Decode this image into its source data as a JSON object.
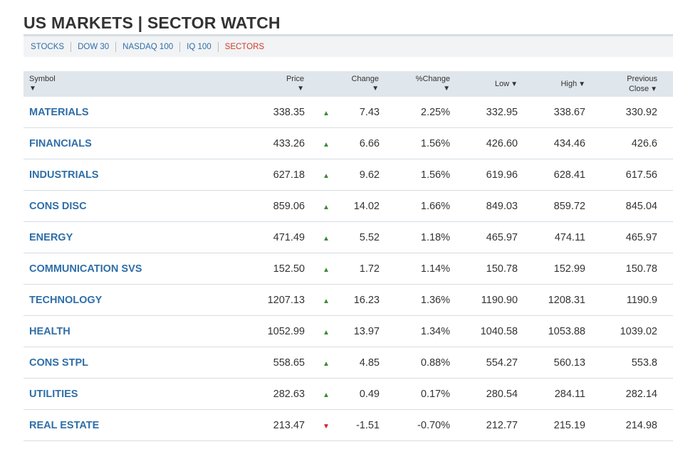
{
  "page": {
    "title": "US MARKETS | SECTOR WATCH"
  },
  "tabs": [
    {
      "label": "STOCKS",
      "active": false
    },
    {
      "label": "DOW 30",
      "active": false
    },
    {
      "label": "NASDAQ 100",
      "active": false
    },
    {
      "label": "IQ 100",
      "active": false
    },
    {
      "label": "SECTORS",
      "active": true
    }
  ],
  "table": {
    "headers": {
      "symbol": "Symbol",
      "price": "Price",
      "change": "Change",
      "pct_change": "%Change",
      "low": "Low",
      "high": "High",
      "prev_close_line1": "Previous",
      "prev_close_line2": "Close"
    },
    "sort_arrow": "▼",
    "up_arrow": "▲",
    "down_arrow": "▼",
    "rows": [
      {
        "symbol": "MATERIALS",
        "price": "338.35",
        "direction": "up",
        "change": "7.43",
        "pct_change": "2.25%",
        "low": "332.95",
        "high": "338.67",
        "prev_close": "330.92"
      },
      {
        "symbol": "FINANCIALS",
        "price": "433.26",
        "direction": "up",
        "change": "6.66",
        "pct_change": "1.56%",
        "low": "426.60",
        "high": "434.46",
        "prev_close": "426.6"
      },
      {
        "symbol": "INDUSTRIALS",
        "price": "627.18",
        "direction": "up",
        "change": "9.62",
        "pct_change": "1.56%",
        "low": "619.96",
        "high": "628.41",
        "prev_close": "617.56"
      },
      {
        "symbol": "CONS DISC",
        "price": "859.06",
        "direction": "up",
        "change": "14.02",
        "pct_change": "1.66%",
        "low": "849.03",
        "high": "859.72",
        "prev_close": "845.04"
      },
      {
        "symbol": "ENERGY",
        "price": "471.49",
        "direction": "up",
        "change": "5.52",
        "pct_change": "1.18%",
        "low": "465.97",
        "high": "474.11",
        "prev_close": "465.97"
      },
      {
        "symbol": "COMMUNICATION SVS",
        "price": "152.50",
        "direction": "up",
        "change": "1.72",
        "pct_change": "1.14%",
        "low": "150.78",
        "high": "152.99",
        "prev_close": "150.78"
      },
      {
        "symbol": "TECHNOLOGY",
        "price": "1207.13",
        "direction": "up",
        "change": "16.23",
        "pct_change": "1.36%",
        "low": "1190.90",
        "high": "1208.31",
        "prev_close": "1190.9"
      },
      {
        "symbol": "HEALTH",
        "price": "1052.99",
        "direction": "up",
        "change": "13.97",
        "pct_change": "1.34%",
        "low": "1040.58",
        "high": "1053.88",
        "prev_close": "1039.02"
      },
      {
        "symbol": "CONS STPL",
        "price": "558.65",
        "direction": "up",
        "change": "4.85",
        "pct_change": "0.88%",
        "low": "554.27",
        "high": "560.13",
        "prev_close": "553.8"
      },
      {
        "symbol": "UTILITIES",
        "price": "282.63",
        "direction": "up",
        "change": "0.49",
        "pct_change": "0.17%",
        "low": "280.54",
        "high": "284.11",
        "prev_close": "282.14"
      },
      {
        "symbol": "REAL ESTATE",
        "price": "213.47",
        "direction": "down",
        "change": "-1.51",
        "pct_change": "-0.70%",
        "low": "212.77",
        "high": "215.19",
        "prev_close": "214.98"
      }
    ]
  },
  "colors": {
    "link": "#2f6ea8",
    "active_tab": "#d23a2a",
    "up": "#3d8b37",
    "down": "#d0202a",
    "header_bg": "#dfe6ec"
  }
}
